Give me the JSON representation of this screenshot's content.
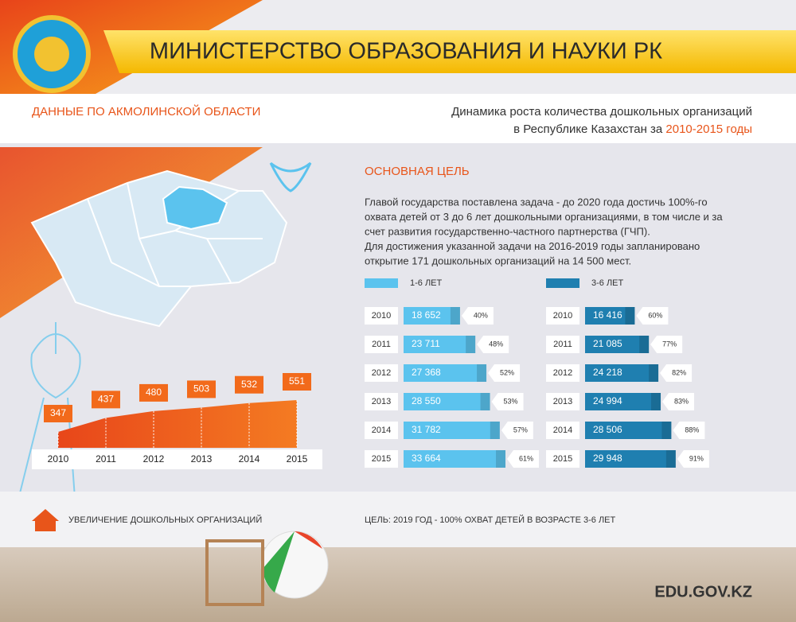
{
  "header": {
    "title": "МИНИСТЕРСТВО ОБРАЗОВАНИЯ И НАУКИ РК",
    "region": "ДАННЫЕ ПО АКМОЛИНСКОЙ ОБЛАСТИ",
    "subtitle_line1": "Динамика роста количества дошкольных организаций",
    "subtitle_line2": "в Республике Казахстан за ",
    "subtitle_years": "2010-2015 годы"
  },
  "goal": {
    "title": "ОСНОВНАЯ ЦЕЛЬ",
    "lines": [
      "Главой государства поставлена задача - до 2020 года достичь 100%-го",
      "охвата детей от 3 до 6 лет дошкольными организациями, в том числе и за",
      "счет развития государственно-частного партнерства (ГЧП).",
      "Для достижения указанной задачи на 2016-2019 годы запланировано",
      "открытие 171 дошкольных организаций на 14 500 мест."
    ]
  },
  "chart_data": [
    {
      "type": "area",
      "categories": [
        "2010",
        "2011",
        "2012",
        "2013",
        "2014",
        "2015"
      ],
      "values": [
        347,
        437,
        480,
        503,
        532,
        551
      ],
      "color": "#f26a1b"
    },
    {
      "type": "hbar",
      "categories": [
        "2010",
        "2011",
        "2012",
        "2013",
        "2014",
        "2015"
      ],
      "series": [
        {
          "name": "1-6 ЛЕТ",
          "color": "#5bc3ee",
          "values": [
            18652,
            23711,
            27368,
            28550,
            31782,
            33664
          ],
          "value_labels": [
            "18 652",
            "23 711",
            "27 368",
            "28 550",
            "31 782",
            "33 664"
          ],
          "share_labels": [
            "40%",
            "48%",
            "52%",
            "53%",
            "57%",
            "61%"
          ]
        }
      ]
    },
    {
      "type": "hbar",
      "categories": [
        "2010",
        "2011",
        "2012",
        "2013",
        "2014",
        "2015"
      ],
      "series": [
        {
          "name": "3-6 ЛЕТ",
          "color": "#1f7fb0",
          "values": [
            16416,
            21085,
            24218,
            24994,
            28506,
            29948
          ],
          "value_labels": [
            "16 416",
            "21 085",
            "24 218",
            "24 994",
            "28 506",
            "29 948"
          ],
          "share_labels": [
            "60%",
            "77%",
            "82%",
            "83%",
            "88%",
            "91%"
          ]
        }
      ]
    }
  ],
  "footer": {
    "left": "УВЕЛИЧЕНИЕ ДОШКОЛЬНЫХ ОРГАНИЗАЦИЙ",
    "goal": "ЦЕЛЬ: 2019 ГОД - 100% ОХВАТ ДЕТЕЙ В ВОЗРАСТЕ 3-6 ЛЕТ",
    "site": "EDU.GOV.KZ"
  }
}
